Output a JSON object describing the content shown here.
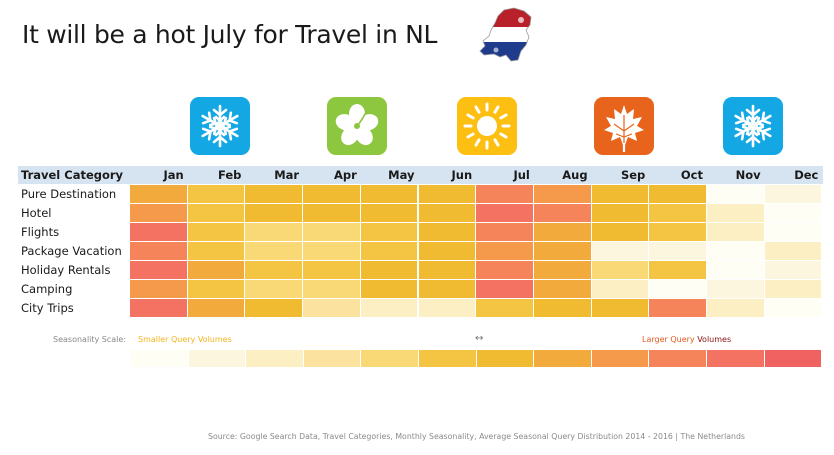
{
  "title": "It will be a hot July for Travel in NL",
  "season_icons": [
    {
      "name": "snowflake-icon",
      "month": "Jan",
      "color": "#13a7e4"
    },
    {
      "name": "hibiscus-icon",
      "month": "Apr",
      "color": "#8dc63f"
    },
    {
      "name": "sun-icon",
      "month": "Jun",
      "color": "#fcbf12"
    },
    {
      "name": "autumn-leaf-icon",
      "month": "Sep",
      "color": "#e8631c"
    },
    {
      "name": "snowflake-icon",
      "month": "Nov",
      "color": "#13a7e4"
    }
  ],
  "chart_data": {
    "type": "heatmap",
    "corner_label": "Travel Category",
    "months": [
      "Jan",
      "Feb",
      "Mar",
      "Apr",
      "May",
      "Jun",
      "Jul",
      "Aug",
      "Sep",
      "Oct",
      "Nov",
      "Dec"
    ],
    "categories": [
      "Pure Destination",
      "Hotel",
      "Flights",
      "Package Vacation",
      "Holiday Rentals",
      "Camping",
      "City Trips"
    ],
    "values": [
      [
        7,
        5,
        6,
        6,
        6,
        6,
        9,
        8,
        6,
        6,
        0,
        1
      ],
      [
        8,
        5,
        6,
        6,
        6,
        6,
        10,
        9,
        6,
        5,
        2,
        0
      ],
      [
        10,
        5,
        4,
        4,
        5,
        6,
        9,
        7,
        6,
        5,
        2,
        0
      ],
      [
        9,
        5,
        4,
        4,
        5,
        6,
        8,
        7,
        1,
        1,
        0,
        2
      ],
      [
        10,
        7,
        5,
        5,
        6,
        6,
        9,
        7,
        4,
        5,
        0,
        1
      ],
      [
        8,
        5,
        4,
        4,
        6,
        6,
        10,
        7,
        2,
        0,
        1,
        2
      ],
      [
        10,
        7,
        6,
        3,
        2,
        2,
        5,
        6,
        6,
        9,
        2,
        0
      ]
    ],
    "scale": {
      "label": "Seasonality Scale:",
      "low_label": "Smaller Query Volumes",
      "arrow": "↔",
      "high_label_1": "Larger Query",
      "high_label_2": " Volumes",
      "levels": [
        0,
        1,
        2,
        3,
        4,
        5,
        6,
        7,
        8,
        9,
        10,
        11
      ]
    },
    "palette": [
      "#fffef5",
      "#fdf6df",
      "#fdefc4",
      "#fbe39f",
      "#f9d975",
      "#f4c542",
      "#f1bb31",
      "#f2aa3c",
      "#f5994a",
      "#f5845a",
      "#f47261",
      "#f06262"
    ],
    "header_color": "#d6e4f1"
  },
  "source": "Source: Google Search Data, Travel Categories, Monthly Seasonality, Average Seasonal Query Distribution 2014 - 2016  | The Netherlands"
}
